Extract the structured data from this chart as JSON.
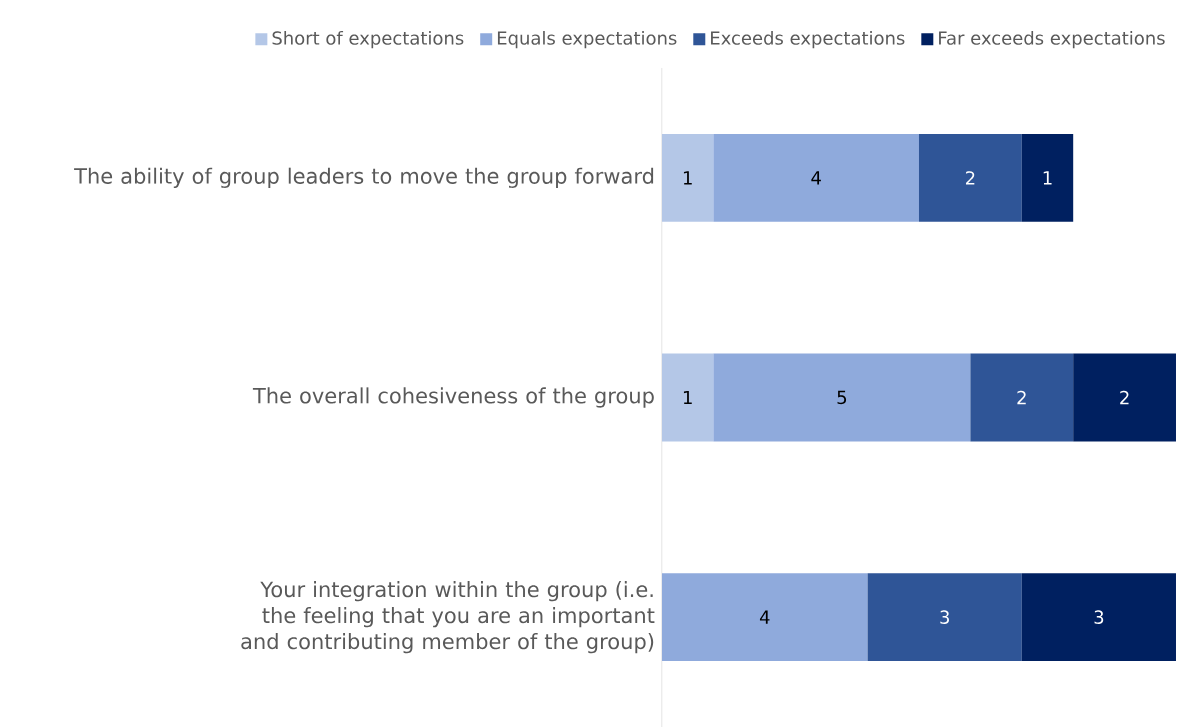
{
  "chart_data": {
    "type": "bar",
    "orientation": "horizontal",
    "stacked": true,
    "data_labels": true,
    "legend": "top",
    "grid": false,
    "categories": [
      "The ability of group leaders to move the group forward",
      "The overall cohesiveness of the group",
      "Your integration within the group (i.e. the feeling that you are an important and contributing member of the group)"
    ],
    "series": [
      {
        "name": "Short of expectations",
        "color": "#b4c7e7",
        "values": [
          1,
          1,
          null
        ]
      },
      {
        "name": "Equals expectations",
        "color": "#8faadc",
        "values": [
          4,
          5,
          4
        ]
      },
      {
        "name": "Exceeds expectations",
        "color": "#2f5597",
        "values": [
          2,
          2,
          3
        ]
      },
      {
        "name": "Far exceeds expectations",
        "color": "#002060",
        "values": [
          1,
          2,
          3
        ]
      }
    ]
  }
}
